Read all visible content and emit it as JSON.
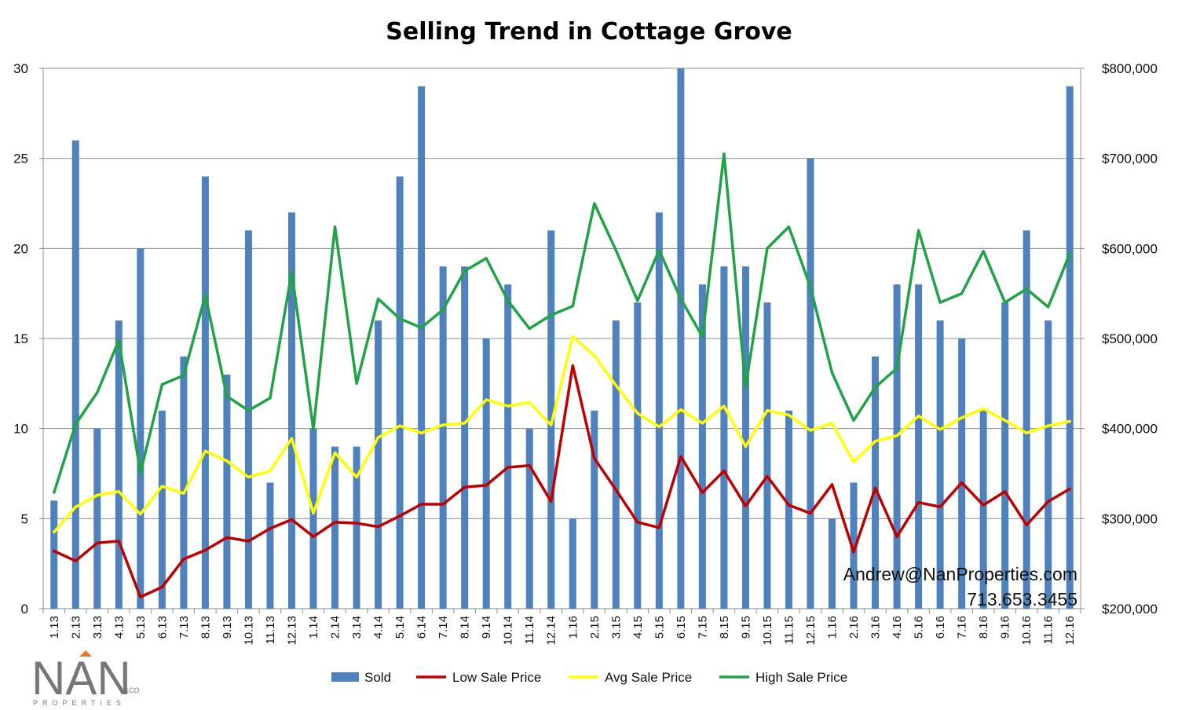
{
  "chart_data": {
    "type": "bar",
    "title": "Selling Trend in Cottage Grove",
    "categories": [
      "1.13",
      "2.13",
      "3.13",
      "4.13",
      "5.13",
      "6.13",
      "7.13",
      "8.13",
      "9.13",
      "10.13",
      "11.13",
      "12.13",
      "1.14",
      "2.14",
      "3.14",
      "4.14",
      "5.14",
      "6.14",
      "7.14",
      "8.14",
      "9.14",
      "10.14",
      "11.14",
      "12.14",
      "1.16",
      "2.15",
      "3.15",
      "4.15",
      "5.15",
      "6.15",
      "7.15",
      "8.15",
      "9.15",
      "10.15",
      "11.15",
      "12.15",
      "1.16",
      "2.16",
      "3.16",
      "4.16",
      "5.16",
      "6.16",
      "7.16",
      "8.16",
      "9.16",
      "10.16",
      "11.16",
      "12.16"
    ],
    "y_left": {
      "min": 0,
      "max": 30,
      "ticks": [
        "0",
        "5",
        "10",
        "15",
        "20",
        "25",
        "30"
      ]
    },
    "y_right": {
      "min": 200000,
      "max": 800000,
      "ticks": [
        "$200,000",
        "$300,000",
        "$400,000",
        "$500,000",
        "$600,000",
        "$700,000",
        "$800,000"
      ]
    },
    "grid": true,
    "legend_position": "bottom",
    "series": [
      {
        "name": "Sold",
        "kind": "bar",
        "axis": "left",
        "color": "#4f81bd",
        "values": [
          6,
          26,
          10,
          16,
          20,
          11,
          14,
          24,
          13,
          21,
          7,
          22,
          10,
          9,
          9,
          16,
          24,
          29,
          19,
          19,
          15,
          18,
          10,
          21,
          5,
          11,
          16,
          17,
          22,
          30,
          18,
          19,
          19,
          17,
          11,
          25,
          5,
          7,
          14,
          18,
          18,
          16,
          15,
          11,
          17,
          21,
          16,
          29
        ]
      },
      {
        "name": "Low Sale Price",
        "kind": "line",
        "axis": "right",
        "color": "#c00000",
        "values": [
          264000,
          253000,
          273000,
          275000,
          213000,
          224000,
          255000,
          265000,
          279000,
          275000,
          289000,
          299000,
          280000,
          296000,
          295000,
          291000,
          303000,
          316000,
          316000,
          335000,
          337000,
          357000,
          359000,
          319000,
          470000,
          367000,
          332000,
          296000,
          290000,
          369000,
          329000,
          353000,
          314000,
          347000,
          315000,
          306000,
          338000,
          263000,
          334000,
          280000,
          318000,
          313000,
          340000,
          315000,
          330000,
          293000,
          319000,
          333000
        ]
      },
      {
        "name": "Avg Sale Price",
        "kind": "line",
        "axis": "right",
        "color": "#ffff00",
        "values": [
          285000,
          313000,
          326000,
          330000,
          305000,
          336000,
          328000,
          375000,
          364000,
          346000,
          353000,
          389000,
          306000,
          373000,
          346000,
          390000,
          403000,
          395000,
          404000,
          406000,
          432000,
          425000,
          429000,
          404000,
          502000,
          481000,
          448000,
          417000,
          402000,
          421000,
          406000,
          425000,
          380000,
          420000,
          415000,
          398000,
          406000,
          363000,
          386000,
          392000,
          414000,
          399000,
          412000,
          422000,
          409000,
          395000,
          403000,
          408000
        ]
      },
      {
        "name": "High Sale Price",
        "kind": "line",
        "axis": "right",
        "color": "#1fa346",
        "values": [
          329000,
          405000,
          440000,
          498000,
          351000,
          449000,
          459000,
          548000,
          436000,
          420000,
          434000,
          574000,
          399000,
          624000,
          450000,
          544000,
          522000,
          512000,
          532000,
          575000,
          589000,
          542000,
          511000,
          526000,
          536000,
          650000,
          598000,
          542000,
          598000,
          544000,
          502000,
          705000,
          446000,
          600000,
          624000,
          557000,
          462000,
          409000,
          446000,
          467000,
          620000,
          540000,
          550000,
          597000,
          540000,
          555000,
          535000,
          594000
        ]
      }
    ]
  },
  "contact": {
    "email": "Andrew@NanProperties.com",
    "phone": "713.653.3455"
  },
  "logo": {
    "main": "NAN",
    "suffix": "&CO",
    "sub": "PROPERTIES"
  }
}
